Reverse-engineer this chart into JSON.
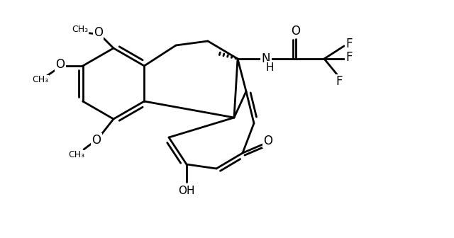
{
  "background_color": "#ffffff",
  "line_color": "#000000",
  "line_width": 2.0,
  "font_size": 11
}
